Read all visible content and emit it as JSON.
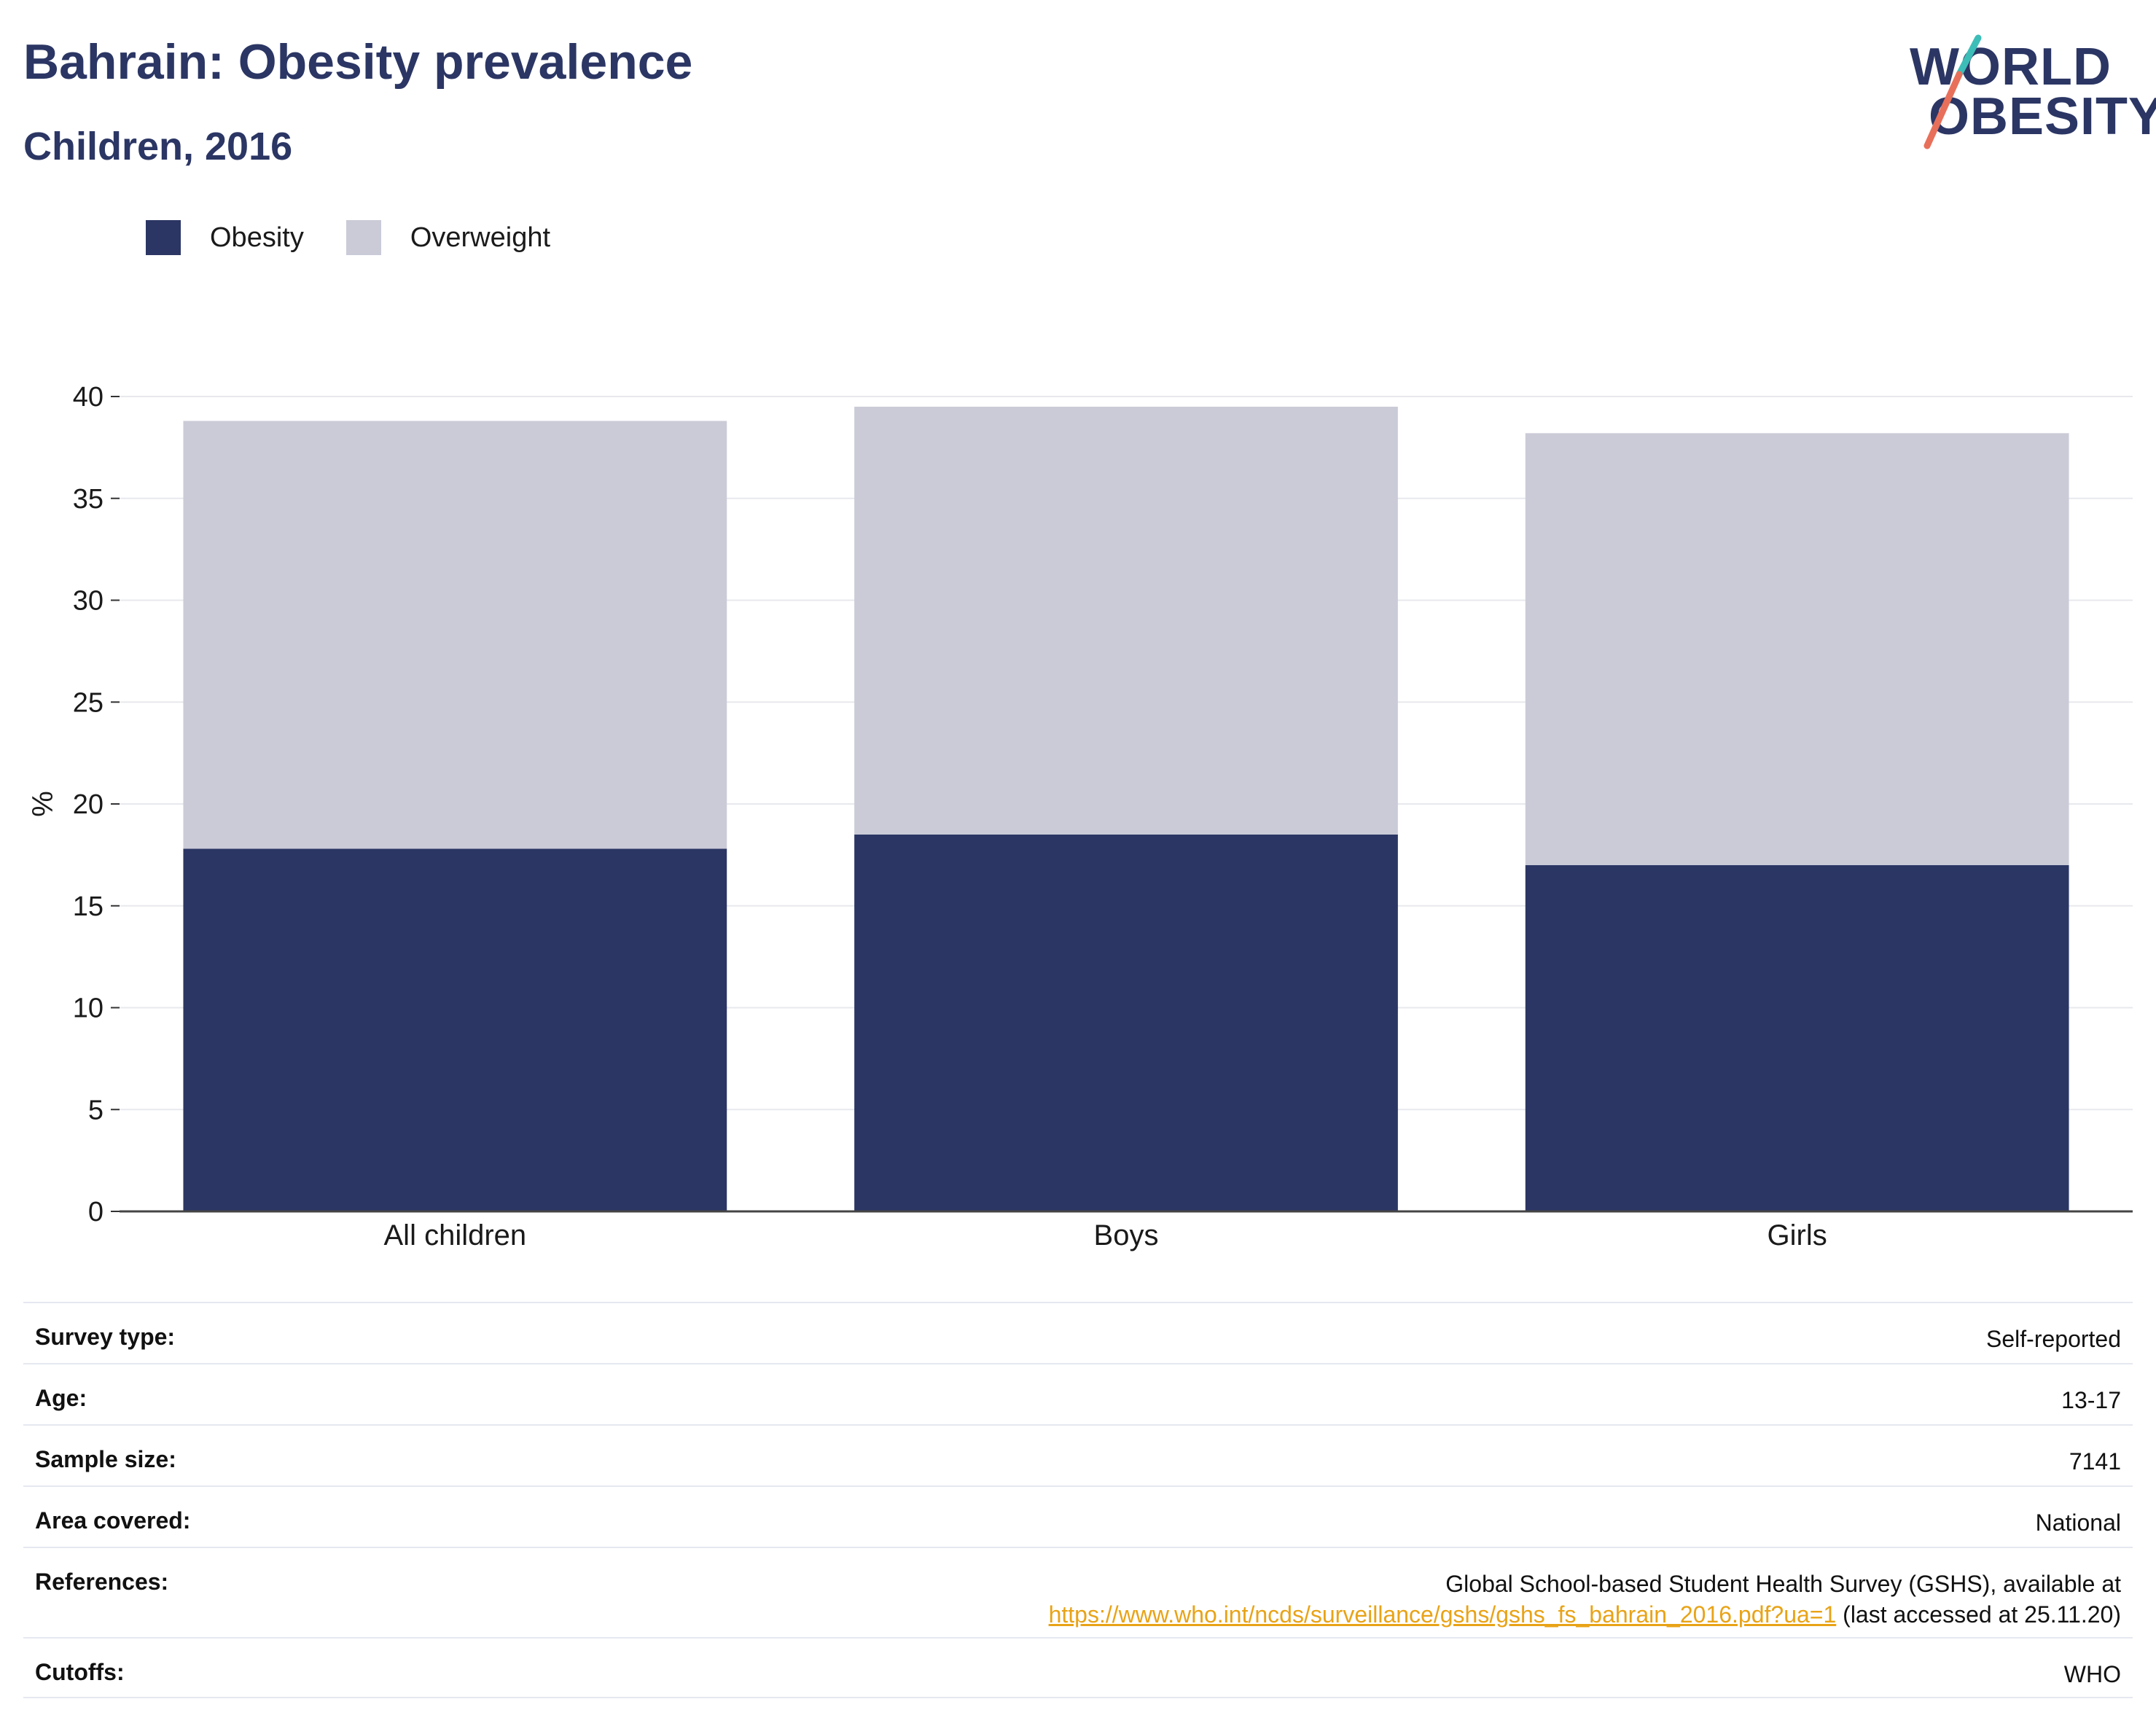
{
  "header": {
    "title": "Bahrain: Obesity prevalence",
    "subtitle": "Children, 2016"
  },
  "logo": {
    "line1": "WORLD",
    "line2": "OBESITY",
    "colors": {
      "text": "#2b3664",
      "slash_top": "#3dbdb7",
      "slash_bottom": "#e8705a"
    }
  },
  "legend": [
    {
      "label": "Obesity",
      "color": "#2b3664"
    },
    {
      "label": "Overweight",
      "color": "#cacbd7"
    }
  ],
  "chart_data": {
    "type": "bar",
    "stacked": true,
    "categories": [
      "All children",
      "Boys",
      "Girls"
    ],
    "series": [
      {
        "name": "Obesity",
        "color": "#2b3664",
        "values": [
          17.8,
          18.5,
          17.0
        ]
      },
      {
        "name": "Overweight",
        "color": "#cacbd7",
        "values": [
          21.0,
          21.0,
          21.2
        ]
      }
    ],
    "ylabel": "%",
    "ylim": [
      0,
      40
    ],
    "yticks": [
      0,
      5,
      10,
      15,
      20,
      25,
      30,
      35,
      40
    ],
    "grid": true,
    "legend_position": "top-left"
  },
  "info": [
    {
      "label": "Survey type:",
      "value": "Self-reported"
    },
    {
      "label": "Age:",
      "value": "13-17"
    },
    {
      "label": "Sample size:",
      "value": "7141"
    },
    {
      "label": "Area covered:",
      "value": "National"
    },
    {
      "label": "References:",
      "value_line1": "Global School-based Student Health Survey (GSHS), available at",
      "link": "https://www.who.int/ncds/surveillance/gshs/gshs_fs_bahrain_2016.pdf?ua=1",
      "value_suffix": " (last accessed at 25.11.20)"
    },
    {
      "label": "Cutoffs:",
      "value": "WHO"
    }
  ]
}
